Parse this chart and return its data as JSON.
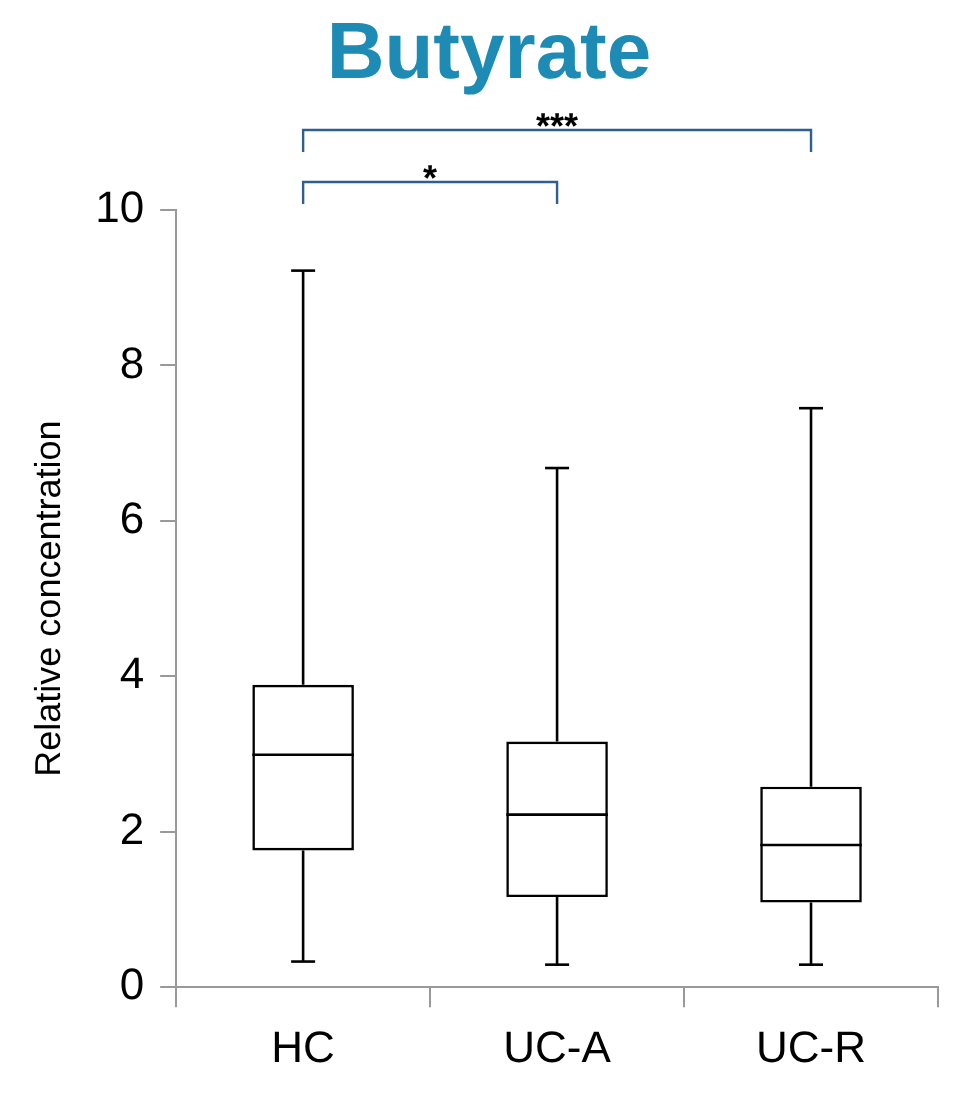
{
  "chart_data": {
    "type": "box",
    "title": "Butyrate",
    "ylabel": "Relative concentration",
    "categories": [
      "HC",
      "UC-A",
      "UC-R"
    ],
    "boxes": [
      {
        "low": 0.33,
        "q1": 1.76,
        "median": 2.99,
        "q3": 3.89,
        "high": 9.22
      },
      {
        "low": 0.29,
        "q1": 1.16,
        "median": 2.22,
        "q3": 3.16,
        "high": 6.68
      },
      {
        "low": 0.29,
        "q1": 1.09,
        "median": 1.83,
        "q3": 2.58,
        "high": 7.45
      }
    ],
    "ylim": [
      0,
      10
    ],
    "yticks": [
      0,
      2,
      4,
      6,
      8,
      10
    ],
    "grid": false,
    "legend": false,
    "annotations": [
      "*",
      "***"
    ]
  }
}
